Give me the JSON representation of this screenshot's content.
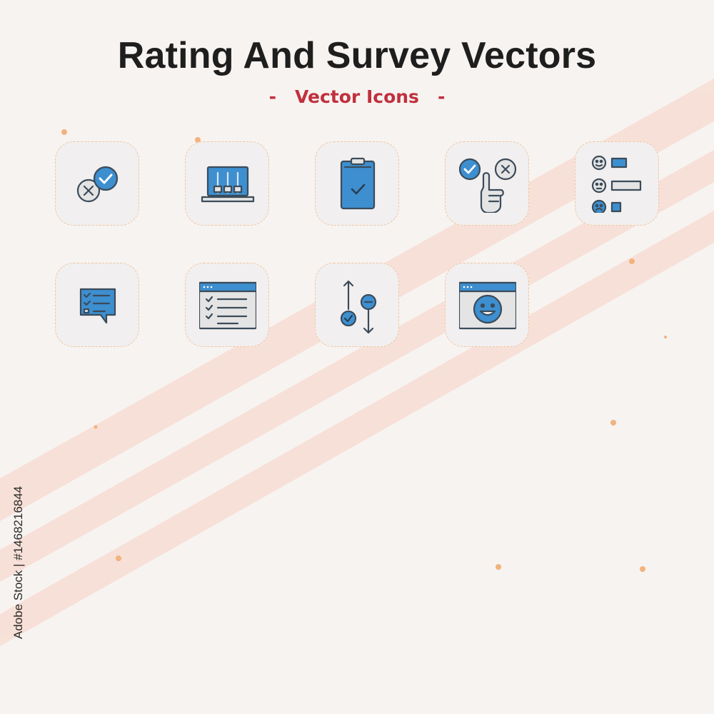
{
  "header": {
    "title": "Rating And Survey Vectors",
    "subtitle_dash_left": "-",
    "subtitle": "Vector Icons",
    "subtitle_dash_right": "-"
  },
  "side_id": "Adobe Stock | #1468216844",
  "colors": {
    "background": "#f7f3f1",
    "tile_border": "#f0c79f",
    "icon_blue": "#3d8fd0",
    "icon_outline": "#3b4b5a",
    "stripe": "#f7e0d6",
    "title": "#1e1e1e",
    "subtitle": "#c0303d"
  },
  "icons": [
    {
      "name": "cross-check-icon"
    },
    {
      "name": "laptop-sliders-icon"
    },
    {
      "name": "clipboard-check-icon"
    },
    {
      "name": "hand-choice-icon"
    },
    {
      "name": "emoji-rating-list-icon"
    },
    {
      "name": "chat-checklist-icon"
    },
    {
      "name": "browser-checklist-icon"
    },
    {
      "name": "up-down-vote-icon"
    },
    {
      "name": "browser-smiley-icon"
    }
  ]
}
